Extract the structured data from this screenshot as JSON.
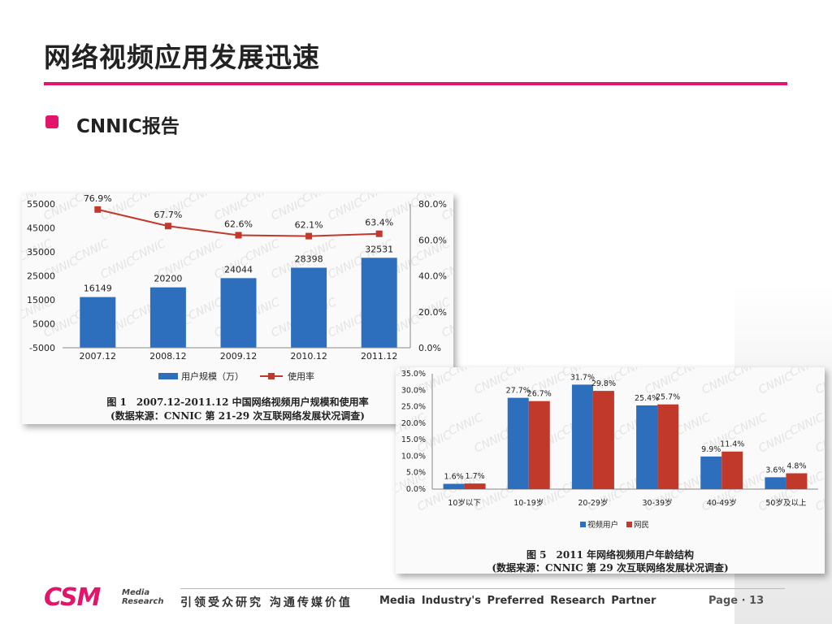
{
  "slide": {
    "title": "网络视频应用发展迅速",
    "bullet": "CNNIC报告"
  },
  "colors": {
    "accent": "#e2156b",
    "blue": "#2e6fbd",
    "red": "#c0392b"
  },
  "chart_data": [
    {
      "type": "bar",
      "categories": [
        "2007.12",
        "2008.12",
        "2009.12",
        "2010.12",
        "2011.12"
      ],
      "series": [
        {
          "name": "用户规模（万）",
          "type": "bar",
          "axis": "left",
          "values": [
            16149,
            20200,
            24044,
            28398,
            32531
          ],
          "labels": [
            "16149",
            "20200",
            "24044",
            "28398",
            "32531"
          ]
        },
        {
          "name": "使用率",
          "type": "line",
          "axis": "right",
          "values": [
            76.9,
            67.7,
            62.6,
            62.1,
            63.4
          ],
          "labels": [
            "76.9%",
            "67.7%",
            "62.6%",
            "62.1%",
            "63.4%"
          ]
        }
      ],
      "left_axis": {
        "ylim": [
          -5000,
          55000
        ],
        "ticks": [
          "55000",
          "45000",
          "35000",
          "25000",
          "15000",
          "5000",
          "-5000"
        ]
      },
      "right_axis": {
        "ylim": [
          0,
          80
        ],
        "ticks": [
          "80.0%",
          "60.0%",
          "40.0%",
          "20.0%",
          "0.0%"
        ]
      },
      "caption_line1": "图 1　2007.12-2011.12 中国网络视频用户规模和使用率",
      "caption_line2": "(数据来源：CNNIC 第 21-29 次互联网络发展状况调查)",
      "legend_position": "bottom",
      "watermark": "CNNIC"
    },
    {
      "type": "bar",
      "categories": [
        "10岁以下",
        "10-19岁",
        "20-29岁",
        "30-39岁",
        "40-49岁",
        "50岁及以上"
      ],
      "series": [
        {
          "name": "视频用户",
          "values": [
            1.6,
            27.7,
            31.7,
            25.4,
            9.9,
            3.6
          ],
          "labels": [
            "1.6%",
            "27.7%",
            "31.7%",
            "25.4%",
            "9.9%",
            "3.6%"
          ]
        },
        {
          "name": "网民",
          "values": [
            1.7,
            26.7,
            29.8,
            25.7,
            11.4,
            4.8
          ],
          "labels": [
            "1.7%",
            "26.7%",
            "29.8%",
            "25.7%",
            "11.4%",
            "4.8%"
          ]
        }
      ],
      "ylim": [
        0,
        35
      ],
      "ticks": [
        "35.0%",
        "30.0%",
        "25.0%",
        "20.0%",
        "15.0%",
        "10.0%",
        "5.0%",
        "0.0%"
      ],
      "caption_line1": "图 5　2011 年网络视频用户年龄结构",
      "caption_line2": "(数据来源：CNNIC 第 29 次互联网络发展状况调查)",
      "legend_position": "bottom",
      "watermark": "CNNIC"
    }
  ],
  "footer": {
    "logo": "CSM",
    "logo_sub1": "Media",
    "logo_sub2": "Research",
    "slogan_cn": "引领受众研究 沟通传媒价值",
    "slogan_en": "Media Industry's Preferred Research Partner",
    "page": "Page · 13"
  }
}
